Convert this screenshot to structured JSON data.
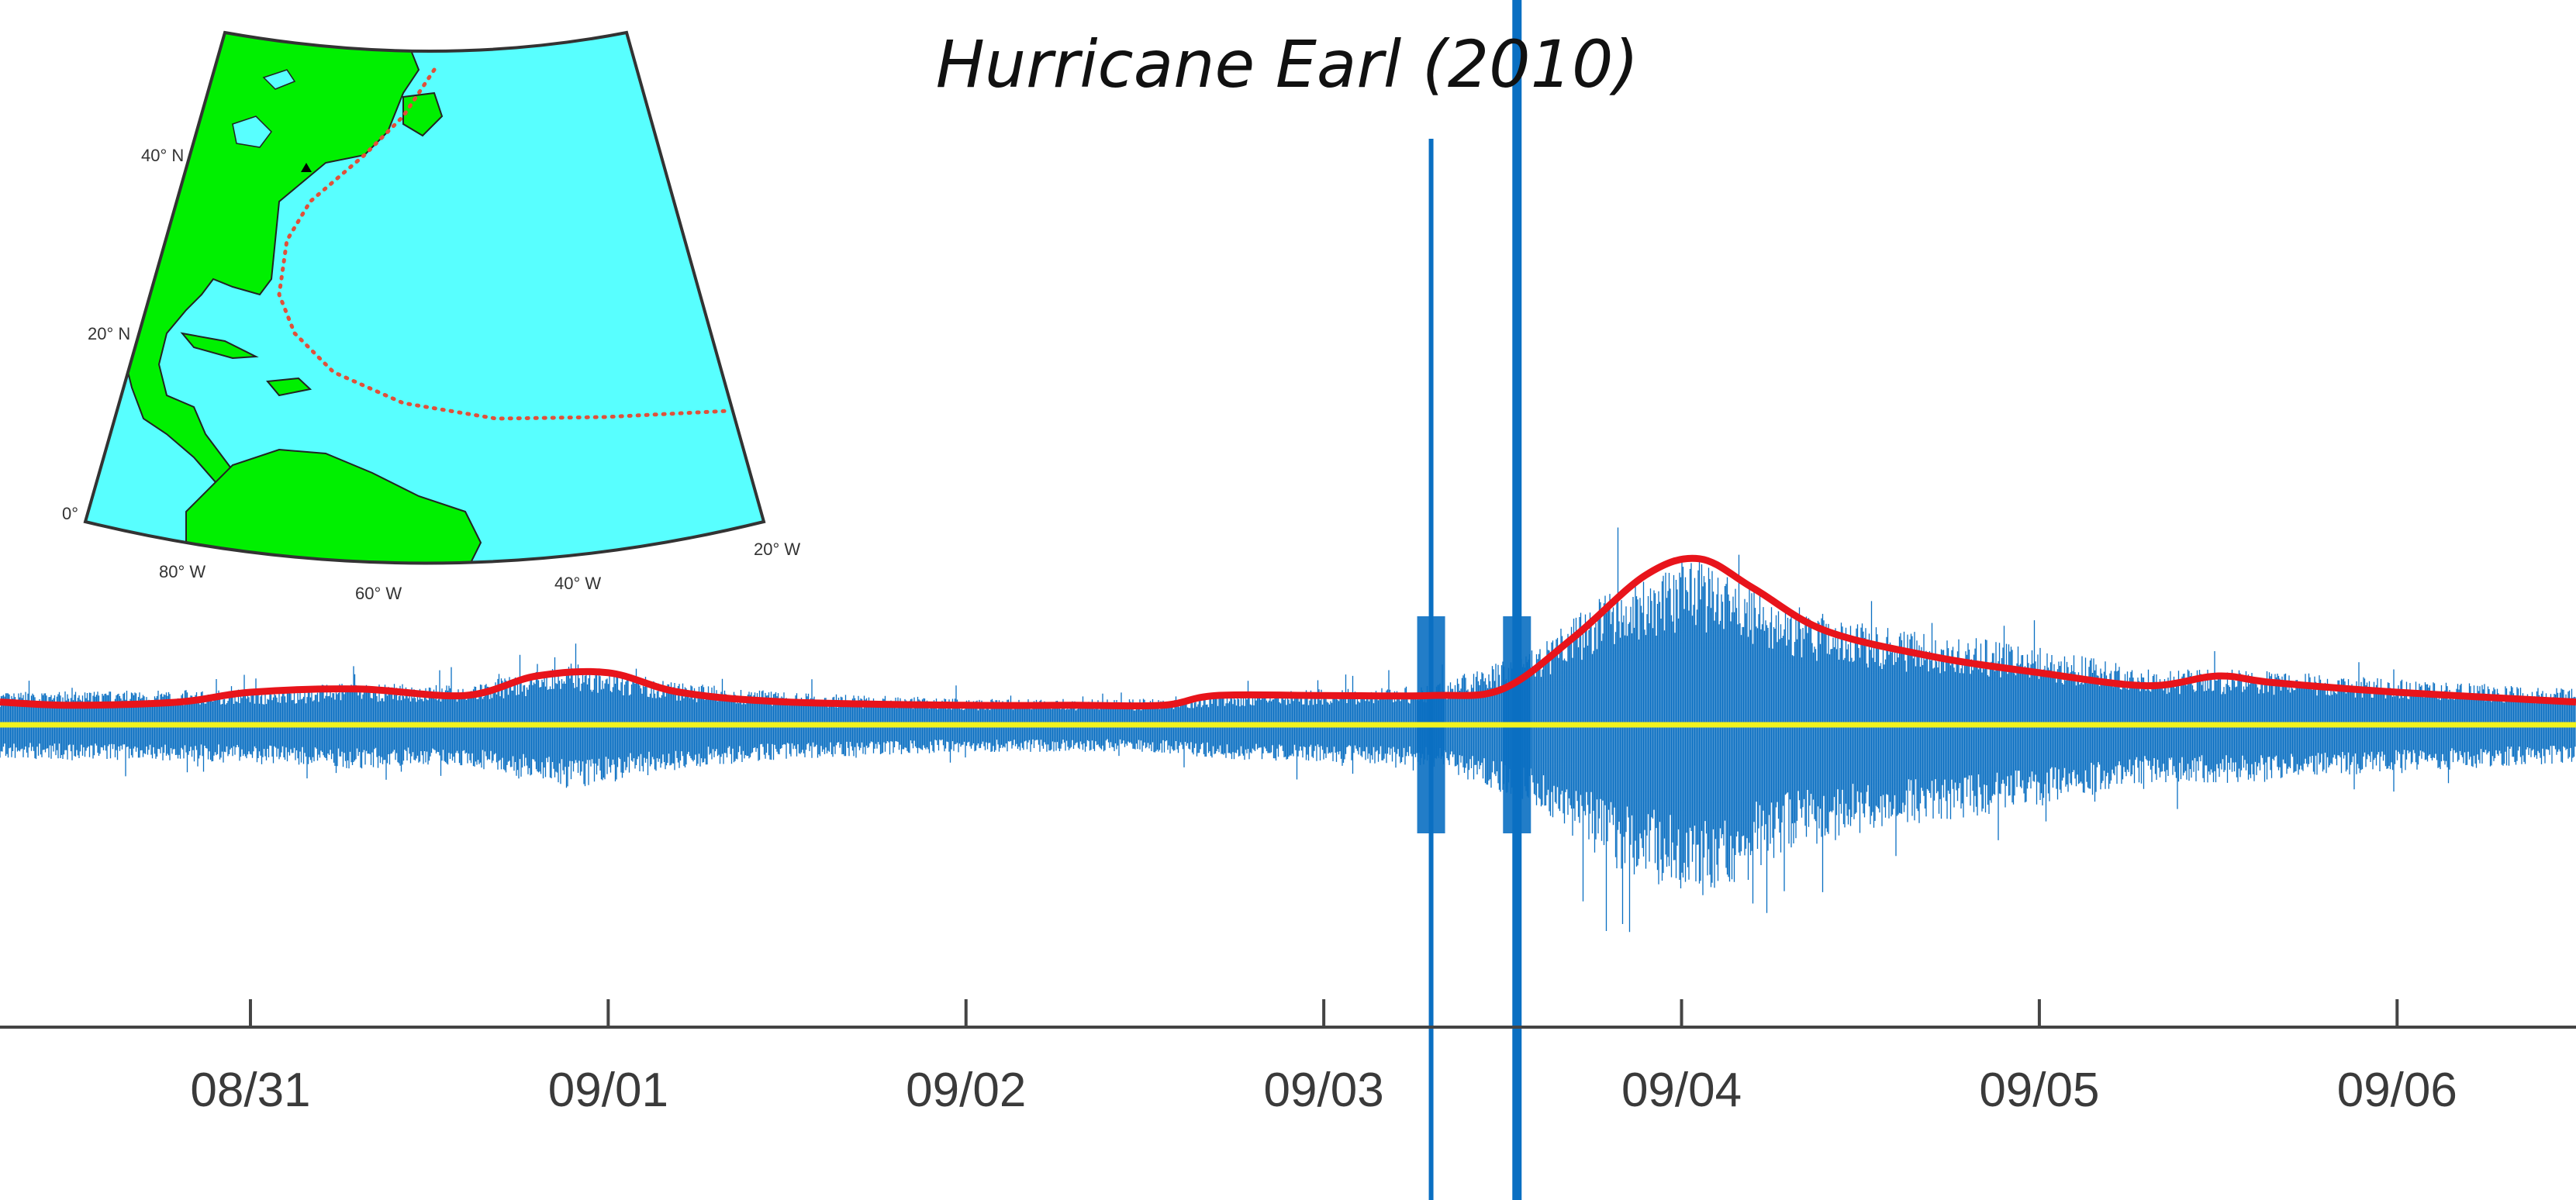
{
  "chart_data": {
    "type": "line",
    "title": "Hurricane Earl (2010)",
    "xlabel": "",
    "ylabel": "",
    "x_tick_labels": [
      "08/31",
      "09/01",
      "09/02",
      "09/03",
      "09/04",
      "09/05",
      "09/06"
    ],
    "x_range_days": [
      -0.7,
      6.5
    ],
    "grid": false,
    "legend": "none",
    "colors": {
      "waveform": "#0a6fc2",
      "envelope": "#e8141b",
      "baseline": "#f2f21c",
      "axis": "#444444",
      "map_ocean": "#58ffff",
      "map_land": "#00f000",
      "track": "#e0503a"
    },
    "series": [
      {
        "role": "envelope",
        "points": [
          [
            -0.7,
            0.07
          ],
          [
            -0.5,
            0.06
          ],
          [
            -0.2,
            0.07
          ],
          [
            0.0,
            0.1
          ],
          [
            0.3,
            0.11
          ],
          [
            0.6,
            0.09
          ],
          [
            0.8,
            0.15
          ],
          [
            1.0,
            0.16
          ],
          [
            1.2,
            0.1
          ],
          [
            1.5,
            0.07
          ],
          [
            2.0,
            0.06
          ],
          [
            2.3,
            0.06
          ],
          [
            2.55,
            0.06
          ],
          [
            2.7,
            0.09
          ],
          [
            3.0,
            0.09
          ],
          [
            3.3,
            0.09
          ],
          [
            3.5,
            0.11
          ],
          [
            3.7,
            0.27
          ],
          [
            3.9,
            0.46
          ],
          [
            4.05,
            0.51
          ],
          [
            4.2,
            0.42
          ],
          [
            4.4,
            0.29
          ],
          [
            4.7,
            0.21
          ],
          [
            5.0,
            0.16
          ],
          [
            5.3,
            0.12
          ],
          [
            5.5,
            0.15
          ],
          [
            5.65,
            0.13
          ],
          [
            6.0,
            0.1
          ],
          [
            6.5,
            0.07
          ]
        ]
      },
      {
        "role": "waveform-amplitude",
        "points": [
          [
            -0.7,
            0.1
          ],
          [
            0.0,
            0.11
          ],
          [
            0.3,
            0.13
          ],
          [
            0.6,
            0.12
          ],
          [
            0.9,
            0.19
          ],
          [
            1.2,
            0.13
          ],
          [
            1.5,
            0.1
          ],
          [
            2.0,
            0.08
          ],
          [
            2.5,
            0.08
          ],
          [
            2.7,
            0.1
          ],
          [
            3.0,
            0.11
          ],
          [
            3.3,
            0.12
          ],
          [
            3.6,
            0.24
          ],
          [
            3.8,
            0.42
          ],
          [
            4.05,
            0.52
          ],
          [
            4.3,
            0.37
          ],
          [
            4.6,
            0.3
          ],
          [
            5.0,
            0.24
          ],
          [
            5.3,
            0.17
          ],
          [
            5.6,
            0.17
          ],
          [
            6.0,
            0.14
          ],
          [
            6.5,
            0.11
          ]
        ]
      },
      {
        "role": "baseline",
        "points": [
          [
            -0.7,
            0.0
          ],
          [
            6.5,
            0.0
          ]
        ]
      }
    ],
    "spikes": [
      {
        "x": 3.3,
        "amplitude": 1.2
      },
      {
        "x": 3.54,
        "amplitude": 2.0
      }
    ],
    "inset_map": {
      "lat_labels": [
        "40° N",
        "20° N",
        "0°"
      ],
      "lon_labels": [
        "80° W",
        "60° W",
        "40° W",
        "20° W"
      ],
      "features": [
        "land",
        "ocean",
        "storm-track",
        "station-marker"
      ]
    }
  }
}
